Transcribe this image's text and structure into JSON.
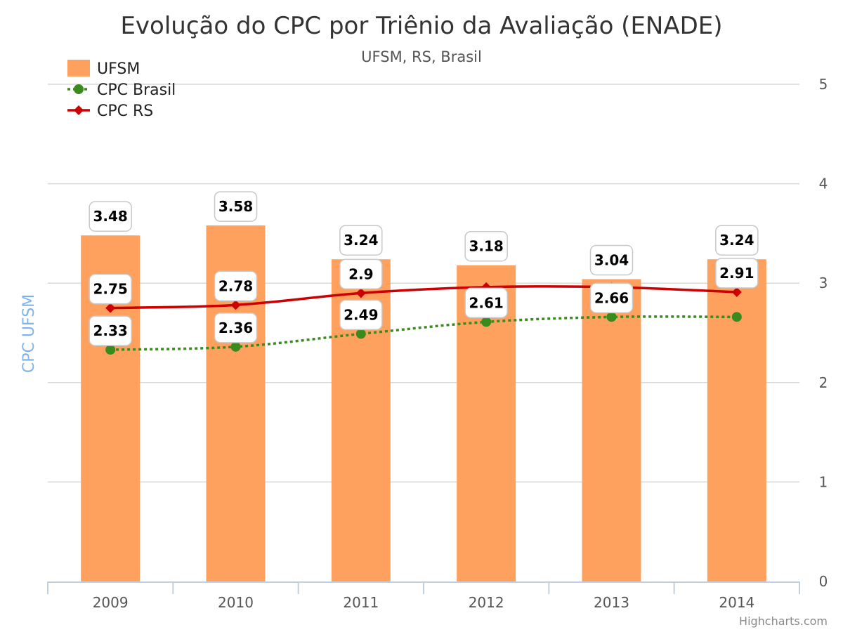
{
  "chart_data": {
    "type": "bar",
    "title": "Evolução do CPC por Triênio da Avaliação (ENADE)",
    "subtitle": "UFSM, RS, Brasil",
    "ylabel": "CPC UFSM",
    "ylim": [
      0,
      5
    ],
    "yticks": [
      "0",
      "1",
      "2",
      "3",
      "4",
      "5"
    ],
    "categories": [
      "2009",
      "2010",
      "2011",
      "2012",
      "2013",
      "2014"
    ],
    "grid": true,
    "legend_position": "top-left",
    "series": [
      {
        "name": "UFSM",
        "type": "bar",
        "color": "#ffa15e",
        "values": [
          3.48,
          3.58,
          3.24,
          3.18,
          3.04,
          3.24
        ],
        "labels": [
          "3.48",
          "3.58",
          "3.24",
          "3.18",
          "3.04",
          "3.24"
        ]
      },
      {
        "name": "CPC Brasil",
        "type": "line",
        "style": "dotted",
        "marker": "circle",
        "color": "#3a8a1e",
        "values": [
          2.33,
          2.36,
          2.49,
          2.61,
          2.66,
          2.66
        ],
        "labels": [
          "2.33",
          "2.36",
          "2.49",
          "2.61",
          "2.66",
          ""
        ]
      },
      {
        "name": "CPC RS",
        "type": "line",
        "style": "solid",
        "marker": "diamond",
        "color": "#cc0000",
        "values": [
          2.75,
          2.78,
          2.9,
          2.96,
          2.96,
          2.91
        ],
        "labels": [
          "2.75",
          "2.78",
          "2.9",
          "",
          "",
          "2.91"
        ]
      }
    ],
    "credits": "Highcharts.com"
  }
}
